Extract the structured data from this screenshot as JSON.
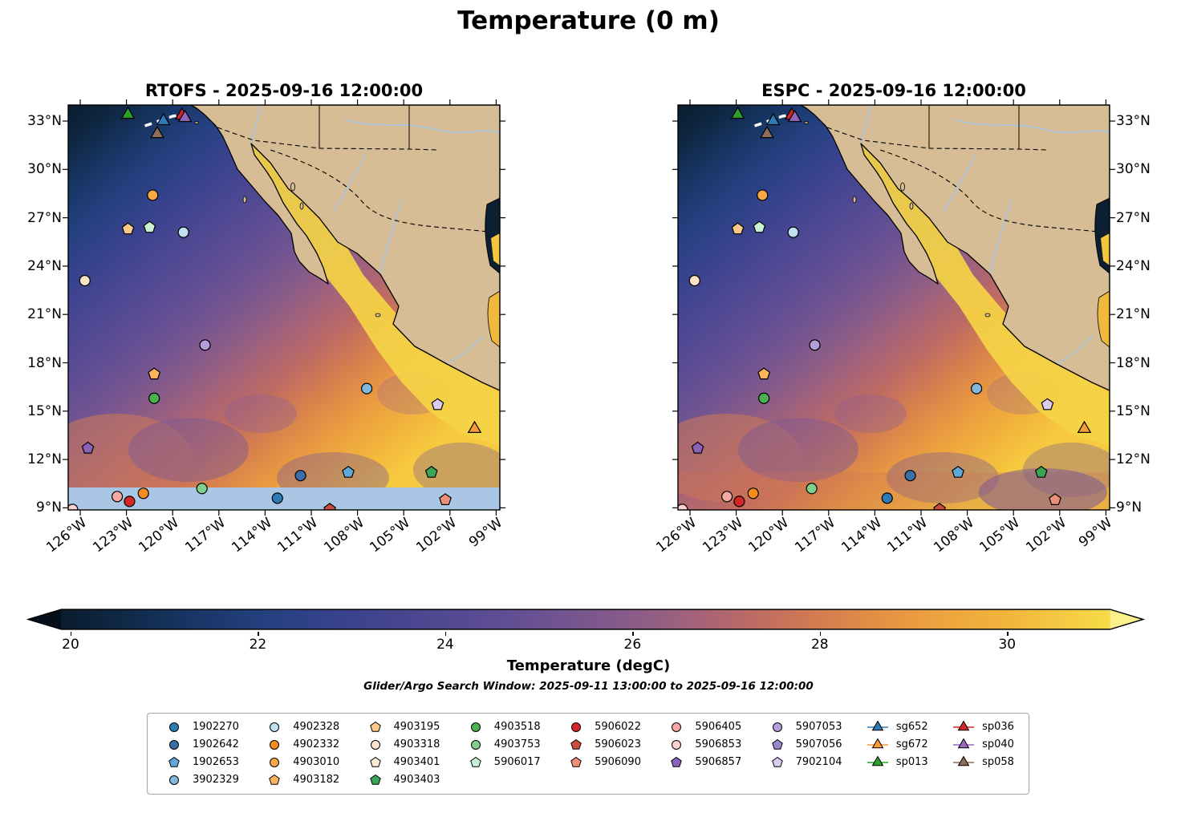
{
  "title": "Temperature (0 m)",
  "panels": [
    {
      "id": "rtofs",
      "title": "RTOFS - 2025-09-16 12:00:00"
    },
    {
      "id": "espc",
      "title": "ESPC - 2025-09-16 12:00:00"
    }
  ],
  "axes": {
    "lat_tick_labels": [
      "33°N",
      "30°N",
      "27°N",
      "24°N",
      "21°N",
      "18°N",
      "15°N",
      "12°N",
      "9°N"
    ],
    "lat_tick_values": [
      33,
      30,
      27,
      24,
      21,
      18,
      15,
      12,
      9
    ],
    "lon_tick_labels": [
      "126°W",
      "123°W",
      "120°W",
      "117°W",
      "114°W",
      "111°W",
      "108°W",
      "105°W",
      "102°W",
      "99°W"
    ],
    "lon_tick_values": [
      -126,
      -123,
      -120,
      -117,
      -114,
      -111,
      -108,
      -105,
      -102,
      -99
    ]
  },
  "colorbar": {
    "label": "Temperature (degC)",
    "ticks": [
      20,
      22,
      24,
      26,
      28,
      30
    ],
    "range": [
      19.9,
      31.1
    ]
  },
  "search_window": "Glider/Argo Search Window: 2025-09-11 13:00:00 to 2025-09-16 12:00:00",
  "legend": {
    "columns": [
      [
        {
          "label": "1902270",
          "shape": "circle",
          "color": "#2d7bb5"
        },
        {
          "label": "1902642",
          "shape": "circle",
          "color": "#3a6ea8"
        },
        {
          "label": "1902653",
          "shape": "pentagon",
          "color": "#5fa8d8"
        },
        {
          "label": "3902329",
          "shape": "circle",
          "color": "#7fb8dc"
        }
      ],
      [
        {
          "label": "4902328",
          "shape": "circle",
          "color": "#bfe1f2"
        },
        {
          "label": "4902332",
          "shape": "circle",
          "color": "#f68b1f"
        },
        {
          "label": "4903010",
          "shape": "circle",
          "color": "#f9a845"
        },
        {
          "label": "4903182",
          "shape": "pentagon",
          "color": "#fbb45c"
        }
      ],
      [
        {
          "label": "4903195",
          "shape": "pentagon",
          "color": "#fbc98a"
        },
        {
          "label": "4903318",
          "shape": "circle",
          "color": "#fde3c8"
        },
        {
          "label": "4903401",
          "shape": "pentagon",
          "color": "#fcecd5"
        },
        {
          "label": "4903403",
          "shape": "pentagon",
          "color": "#3aa655"
        }
      ],
      [
        {
          "label": "4903518",
          "shape": "circle",
          "color": "#4caf50"
        },
        {
          "label": "4903753",
          "shape": "circle",
          "color": "#7fd08c"
        },
        {
          "label": "5906017",
          "shape": "pentagon",
          "color": "#c9f2d4"
        }
      ],
      [
        {
          "label": "5906022",
          "shape": "circle",
          "color": "#d62728"
        },
        {
          "label": "5906023",
          "shape": "pentagon",
          "color": "#cc4b3f"
        },
        {
          "label": "5906090",
          "shape": "pentagon",
          "color": "#ef8f7a"
        }
      ],
      [
        {
          "label": "5906405",
          "shape": "circle",
          "color": "#f4a7a3"
        },
        {
          "label": "5906853",
          "shape": "circle",
          "color": "#fbd2cf"
        },
        {
          "label": "5906857",
          "shape": "pentagon",
          "color": "#8a63b8"
        }
      ],
      [
        {
          "label": "5907053",
          "shape": "circle",
          "color": "#b49fdc"
        },
        {
          "label": "5907056",
          "shape": "pentagon",
          "color": "#9a86c8"
        },
        {
          "label": "7902104",
          "shape": "pentagon",
          "color": "#d9ccf0"
        }
      ],
      [
        {
          "label": "sg652",
          "shape": "triangle",
          "color": "#2d7bb5",
          "line": true
        },
        {
          "label": "sg672",
          "shape": "triangle",
          "color": "#f89c38",
          "line": true
        },
        {
          "label": "sp013",
          "shape": "triangle",
          "color": "#2ca02c",
          "line": true
        }
      ],
      [
        {
          "label": "sp036",
          "shape": "triangle",
          "color": "#d62728",
          "line": true
        },
        {
          "label": "sp040",
          "shape": "triangle",
          "color": "#9467bd",
          "line": true
        },
        {
          "label": "sp058",
          "shape": "triangle",
          "color": "#8c6d5a",
          "line": true
        }
      ]
    ]
  },
  "chart_data": {
    "type": "heatmap",
    "subtype": "geographic sea-surface temperature model comparison, 2 panels with float/glider positions",
    "title": "Temperature (0 m)",
    "panels": [
      "RTOFS - 2025-09-16 12:00:00",
      "ESPC - 2025-09-16 12:00:00"
    ],
    "variable": "Temperature (degC) at 0 m depth",
    "lon_range": [
      -127,
      -98.7
    ],
    "lat_range": [
      8.9,
      34.0
    ],
    "colorbar": {
      "label": "Temperature (degC)",
      "ticks": [
        20,
        22,
        24,
        26,
        28,
        30
      ],
      "range": [
        19.9,
        31.1
      ]
    },
    "field_description": "cold (~20 degC, dark navy) in the northwest offshore California; warm (29-31 degC, orange-yellow) along the Mexican coast, Gulf of California and to the south; RTOFS panel has a no-data light blue band south of ~10N",
    "markers": [
      {
        "id": "sp013",
        "shape": "triangle",
        "color": "#2ca02c",
        "lon": -122.9,
        "lat": 33.4
      },
      {
        "id": "sg652",
        "shape": "triangle",
        "color": "#2d7bb5",
        "lon": -120.6,
        "lat": 33.0
      },
      {
        "id": "sp036",
        "shape": "triangle",
        "color": "#d62728",
        "lon": -119.4,
        "lat": 33.35
      },
      {
        "id": "sp040",
        "shape": "triangle",
        "color": "#9467bd",
        "lon": -119.2,
        "lat": 33.2
      },
      {
        "id": "sp058",
        "shape": "triangle",
        "color": "#8c6d5a",
        "lon": -121.0,
        "lat": 32.2
      },
      {
        "id": "4903010",
        "shape": "circle",
        "color": "#f9a845",
        "lon": -121.3,
        "lat": 28.4
      },
      {
        "id": "4903195",
        "shape": "pentagon",
        "color": "#fbc98a",
        "lon": -122.9,
        "lat": 26.3
      },
      {
        "id": "5906017",
        "shape": "pentagon",
        "color": "#c9f2d4",
        "lon": -121.5,
        "lat": 26.4
      },
      {
        "id": "4902328",
        "shape": "circle",
        "color": "#bfe1f2",
        "lon": -119.3,
        "lat": 26.1
      },
      {
        "id": "4903318",
        "shape": "circle",
        "color": "#fde3c8",
        "lon": -125.7,
        "lat": 23.1
      },
      {
        "id": "5907053",
        "shape": "circle",
        "color": "#b49fdc",
        "lon": -117.9,
        "lat": 19.1
      },
      {
        "id": "4903182",
        "shape": "pentagon",
        "color": "#fbb45c",
        "lon": -121.2,
        "lat": 17.3
      },
      {
        "id": "4903518",
        "shape": "circle",
        "color": "#4caf50",
        "lon": -121.2,
        "lat": 15.8
      },
      {
        "id": "3902329",
        "shape": "circle",
        "color": "#7fb8dc",
        "lon": -107.4,
        "lat": 16.4
      },
      {
        "id": "7902104",
        "shape": "pentagon",
        "color": "#d9ccf0",
        "lon": -102.8,
        "lat": 15.4
      },
      {
        "id": "sg672",
        "shape": "triangle",
        "color": "#f89c38",
        "lon": -100.4,
        "lat": 13.9
      },
      {
        "id": "5906857",
        "shape": "pentagon",
        "color": "#8a63b8",
        "lon": -125.5,
        "lat": 12.7
      },
      {
        "id": "1902653",
        "shape": "pentagon",
        "color": "#5fa8d8",
        "lon": -108.6,
        "lat": 11.2
      },
      {
        "id": "1902642",
        "shape": "circle",
        "color": "#3a6ea8",
        "lon": -111.7,
        "lat": 11.0
      },
      {
        "id": "4903753",
        "shape": "circle",
        "color": "#7fd08c",
        "lon": -118.1,
        "lat": 10.2
      },
      {
        "id": "4903403",
        "shape": "pentagon",
        "color": "#3aa655",
        "lon": -103.2,
        "lat": 11.2
      },
      {
        "id": "4902332",
        "shape": "circle",
        "color": "#f68b1f",
        "lon": -121.9,
        "lat": 9.9
      },
      {
        "id": "5906405",
        "shape": "circle",
        "color": "#f4a7a3",
        "lon": -123.6,
        "lat": 9.7
      },
      {
        "id": "5906022",
        "shape": "circle",
        "color": "#d62728",
        "lon": -122.8,
        "lat": 9.4
      },
      {
        "id": "1902270",
        "shape": "circle",
        "color": "#2d7bb5",
        "lon": -113.2,
        "lat": 9.6
      },
      {
        "id": "5906023",
        "shape": "pentagon",
        "color": "#cc4b3f",
        "lon": -109.8,
        "lat": 8.9
      },
      {
        "id": "5906090",
        "shape": "pentagon",
        "color": "#ef8f7a",
        "lon": -102.3,
        "lat": 9.5
      },
      {
        "id": "5906853",
        "shape": "circle",
        "color": "#fbd2cf",
        "lon": -126.5,
        "lat": 8.9
      }
    ],
    "glider_track_lonlat": [
      [
        -121.8,
        32.7
      ],
      [
        -120.9,
        33.0
      ],
      [
        -120.0,
        33.3
      ],
      [
        -119.4,
        33.4
      ]
    ],
    "rtofs_no_data_band": {
      "lat_max": 10.0,
      "color": "#a9c7e4"
    }
  }
}
